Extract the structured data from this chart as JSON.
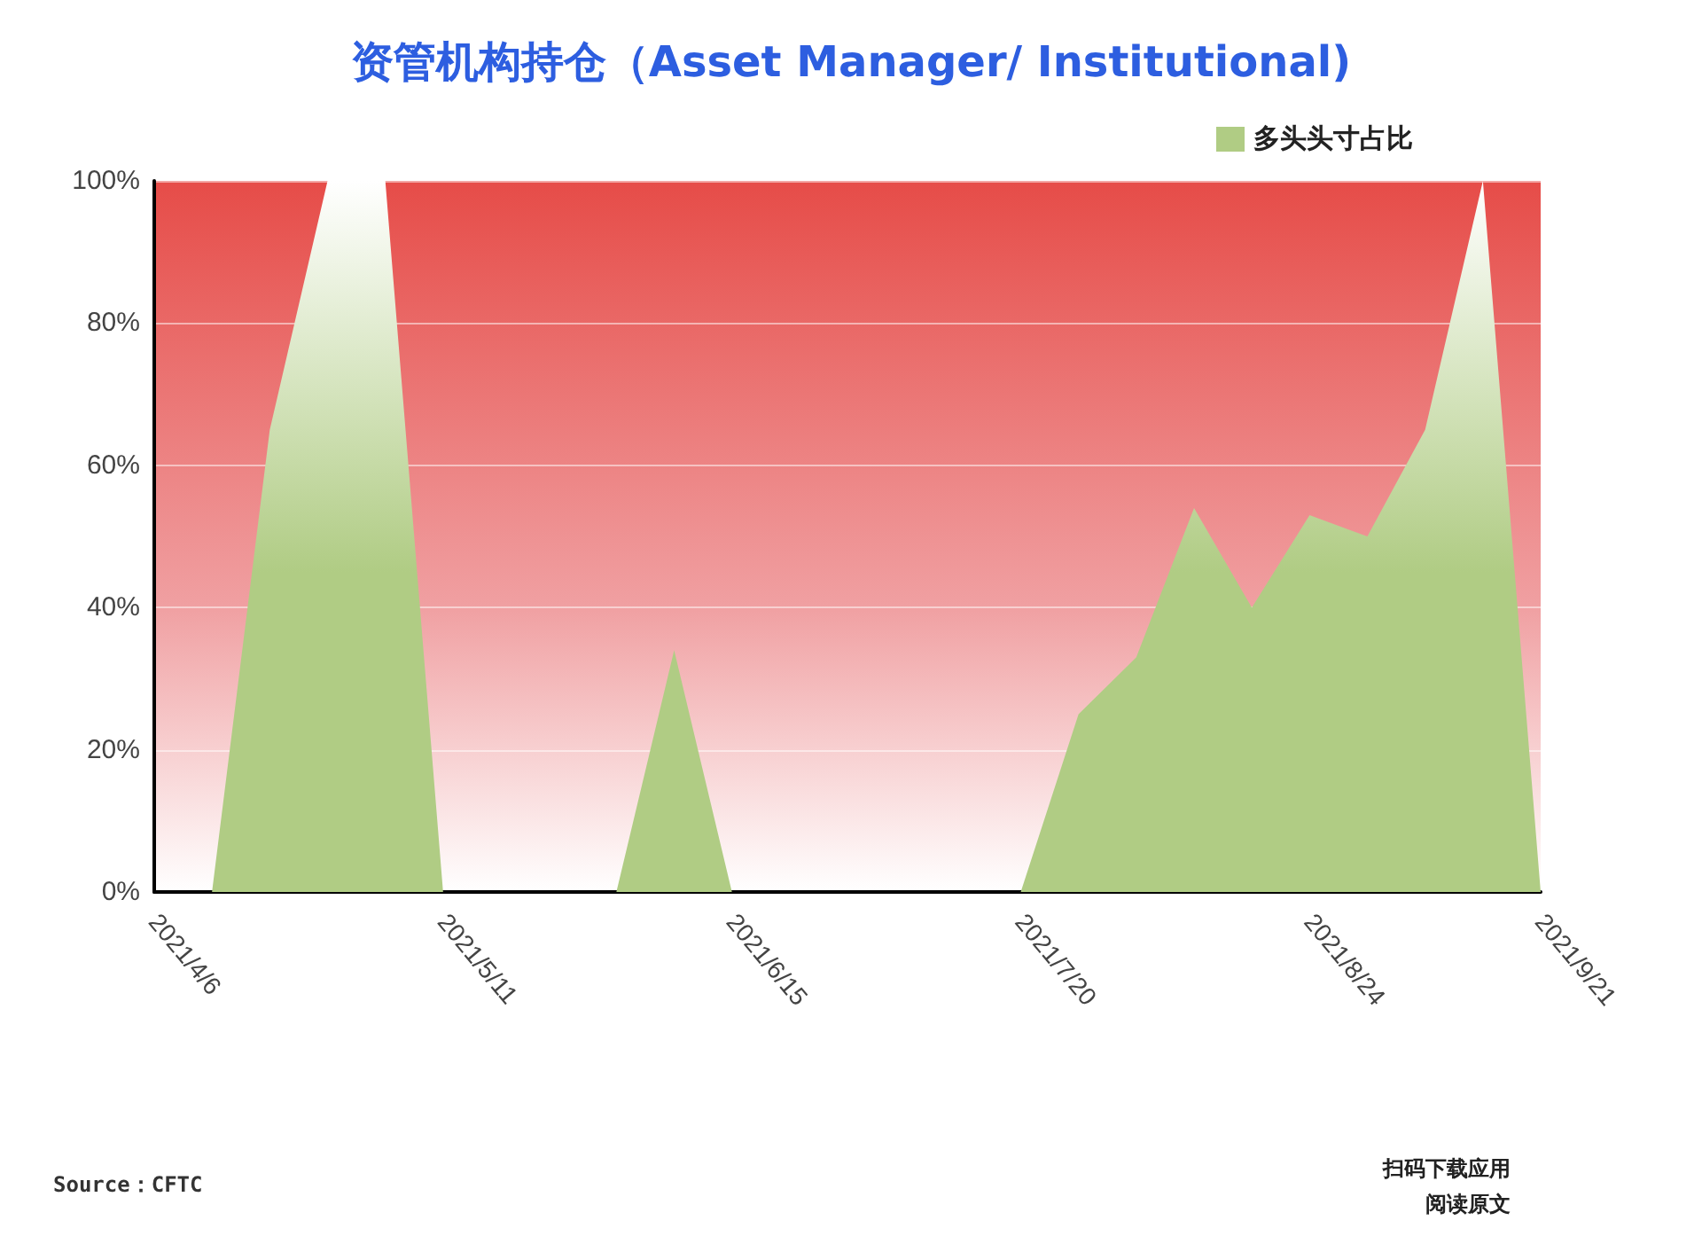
{
  "chart_data": {
    "type": "area",
    "title": "资管机构持仓（Asset Manager/ Institutional)",
    "categories": [
      "2021/4/6",
      null,
      null,
      null,
      null,
      "2021/5/11",
      null,
      null,
      null,
      null,
      "2021/6/15",
      null,
      null,
      null,
      null,
      "2021/7/20",
      null,
      null,
      null,
      null,
      "2021/8/24",
      null,
      null,
      null,
      "2021/9/21"
    ],
    "series": [
      {
        "name": "多头头寸占比",
        "color": "#b0cc84",
        "values": [
          0,
          0,
          65,
          100,
          100,
          0,
          0,
          0,
          0,
          34,
          0,
          0,
          0,
          0,
          0,
          0,
          25,
          33,
          54,
          40,
          53,
          50,
          65,
          100,
          0
        ]
      }
    ],
    "ylim": [
      0,
      100
    ],
    "yticks": [
      {
        "value": 0,
        "label": "0%"
      },
      {
        "value": 20,
        "label": "20%"
      },
      {
        "value": 40,
        "label": "40%"
      },
      {
        "value": 60,
        "label": "60%"
      },
      {
        "value": 80,
        "label": "80%"
      },
      {
        "value": 100,
        "label": "100%"
      }
    ],
    "grid": "y",
    "legend": "top right",
    "annotations": [
      "Source：CFTC",
      "扫码下载应用",
      "阅读原文"
    ]
  }
}
